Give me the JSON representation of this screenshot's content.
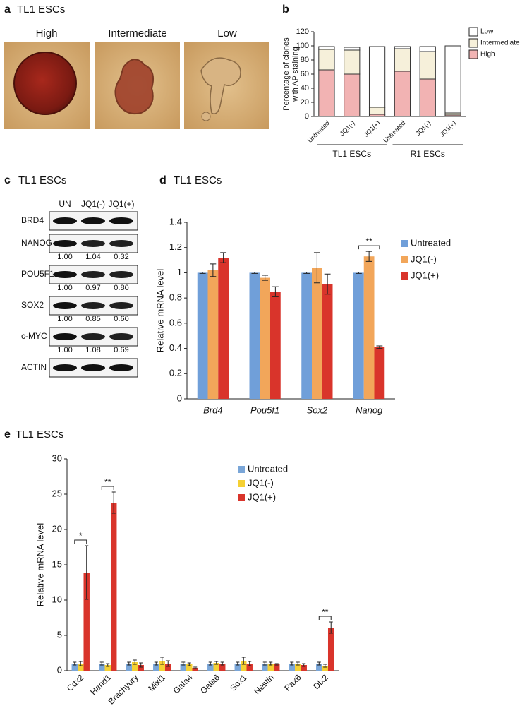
{
  "panel_a": {
    "label": "a",
    "title": "TL1 ESCs",
    "images": [
      "High",
      "Intermediate",
      "Low"
    ]
  },
  "panel_c": {
    "label": "c",
    "title": "TL1 ESCs",
    "columns": [
      "UN",
      "JQ1(-)",
      "JQ1(+)"
    ],
    "rows": [
      {
        "protein": "BRD4"
      },
      {
        "protein": "NANOG",
        "quant": [
          "1.00",
          "1.04",
          "0.32"
        ]
      },
      {
        "protein": "POU5F1",
        "quant": [
          "1.00",
          "0.97",
          "0.80"
        ]
      },
      {
        "protein": "SOX2",
        "quant": [
          "1.00",
          "0.85",
          "0.60"
        ]
      },
      {
        "protein": "c-MYC",
        "quant": [
          "1.00",
          "1.08",
          "0.69"
        ]
      },
      {
        "protein": "ACTIN"
      }
    ]
  },
  "chart_data": [
    {
      "type": "bar",
      "stacked": true,
      "label": "b",
      "ylabel": [
        "Percentage of clones",
        "with AP staining"
      ],
      "categories": [
        "Untreated",
        "JQ1(-)",
        "JQ1(+)",
        "Untreated",
        "JQ1(-)",
        "JQ1(+)"
      ],
      "groups": [
        "TL1 ESCs",
        "R1 ESCs"
      ],
      "series": [
        {
          "name": "High",
          "color": "#f2b3b3",
          "values": [
            66,
            60,
            3,
            64,
            53,
            2
          ]
        },
        {
          "name": "Intermediate",
          "color": "#f6f0da",
          "values": [
            29,
            34,
            10,
            32,
            39,
            3
          ]
        },
        {
          "name": "Low",
          "color": "#ffffff",
          "values": [
            4,
            4,
            86,
            3,
            7,
            95
          ]
        }
      ],
      "ylim": [
        0,
        120
      ],
      "yticks": [
        0,
        20,
        40,
        60,
        80,
        100,
        120
      ],
      "grid": false
    },
    {
      "type": "bar",
      "label": "d",
      "title": "TL1 ESCs",
      "ylabel": "Relative mRNA level",
      "italic_categories": true,
      "categories": [
        "Brd4",
        "Pou5f1",
        "Sox2",
        "Nanog"
      ],
      "series": [
        {
          "name": "Untreated",
          "color": "#709fd9",
          "values": [
            1,
            1,
            1,
            1
          ],
          "errors": [
            0.005,
            0.005,
            0.005,
            0.005
          ]
        },
        {
          "name": "JQ1(-)",
          "color": "#f2a65a",
          "values": [
            1.02,
            0.96,
            1.04,
            1.13
          ],
          "errors": [
            0.05,
            0.02,
            0.12,
            0.04
          ]
        },
        {
          "name": "JQ1(+)",
          "color": "#d9342b",
          "values": [
            1.12,
            0.85,
            0.91,
            0.41
          ],
          "errors": [
            0.04,
            0.04,
            0.08,
            0.01
          ]
        }
      ],
      "annotations": [
        {
          "text": "**",
          "category": "Nanog"
        }
      ],
      "ylim": [
        0,
        1.4
      ],
      "yticks": [
        0,
        0.2,
        0.4,
        0.6,
        0.8,
        1,
        1.2,
        1.4
      ],
      "grid": false
    },
    {
      "type": "bar",
      "label": "e",
      "title": "TL1 ESCs",
      "ylabel": "Relative mRNA level",
      "categories": [
        "Cdx2",
        "Hand1",
        "Brachyury",
        "Mixl1",
        "Gata4",
        "Gata6",
        "Sox1",
        "Nestin",
        "Pax6",
        "Dlx2"
      ],
      "series": [
        {
          "name": "Untreated",
          "color": "#7aa6d8",
          "values": [
            1,
            1,
            1,
            1,
            1,
            1,
            1,
            1,
            1,
            1
          ],
          "errors": [
            0.2,
            0.2,
            0.2,
            0.2,
            0.2,
            0.2,
            0.2,
            0.2,
            0.2,
            0.2
          ]
        },
        {
          "name": "JQ1(-)",
          "color": "#f5d033",
          "values": [
            1.0,
            0.8,
            1.2,
            1.4,
            0.9,
            1.1,
            1.4,
            1.0,
            1.0,
            0.7
          ],
          "errors": [
            0.3,
            0.2,
            0.3,
            0.5,
            0.2,
            0.2,
            0.5,
            0.2,
            0.2,
            0.2
          ]
        },
        {
          "name": "JQ1(+)",
          "color": "#d9342b",
          "values": [
            13.9,
            23.8,
            0.8,
            1.0,
            0.4,
            1.0,
            1.0,
            0.9,
            0.8,
            6.1
          ],
          "errors": [
            3.8,
            1.5,
            0.3,
            0.4,
            0.1,
            0.2,
            0.3,
            0.1,
            0.2,
            0.8
          ]
        }
      ],
      "annotations": [
        {
          "text": "*",
          "category": "Cdx2"
        },
        {
          "text": "**",
          "category": "Hand1"
        },
        {
          "text": "**",
          "category": "Dlx2"
        }
      ],
      "ylim": [
        0,
        30
      ],
      "yticks": [
        0,
        5,
        10,
        15,
        20,
        25,
        30
      ],
      "grid": false
    }
  ]
}
